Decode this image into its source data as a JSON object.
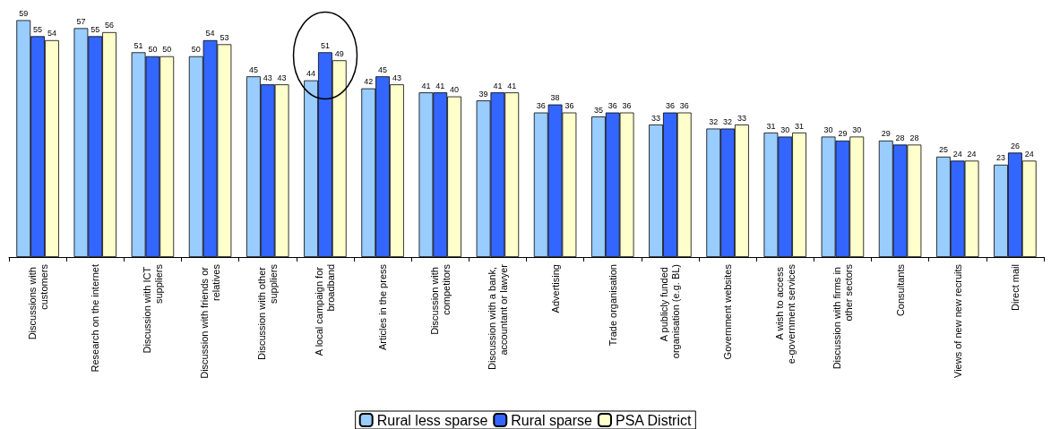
{
  "chart_data": {
    "type": "bar",
    "categories": [
      "Discussions with customers",
      "Research on the internet",
      "Discussion with ICT suppliers",
      "Discussion with friends or relatives",
      "Discussion with other suppliers",
      "A local campaign for broadband",
      "Articles in the press",
      "Discussion with competitors",
      "Discussion with a bank, accountant or lawyer",
      "Advertising",
      "Trade organisation",
      "A publicly funded organisation (e.g. BL)",
      "Government websites",
      "A wish to access e-government services",
      "Discussion with firms in other sectors",
      "Consultants",
      "Views of new new recruits",
      "Direct mail"
    ],
    "series": [
      {
        "name": "Rural less sparse",
        "color": "#99ccff",
        "values": [
          59,
          57,
          51,
          50,
          45,
          44,
          42,
          41,
          39,
          36,
          35,
          33,
          32,
          31,
          30,
          29,
          25,
          23
        ]
      },
      {
        "name": "Rural sparse",
        "color": "#3366ff",
        "values": [
          55,
          55,
          50,
          54,
          43,
          51,
          45,
          41,
          41,
          38,
          36,
          36,
          32,
          30,
          29,
          28,
          24,
          26
        ]
      },
      {
        "name": "PSA District",
        "color": "#ffffcc",
        "values": [
          54,
          56,
          50,
          53,
          43,
          49,
          43,
          40,
          41,
          36,
          36,
          36,
          33,
          31,
          30,
          28,
          24,
          24
        ]
      }
    ],
    "tick_labels": "x",
    "data_labels": true,
    "legend": "bottom",
    "grid": false
  }
}
